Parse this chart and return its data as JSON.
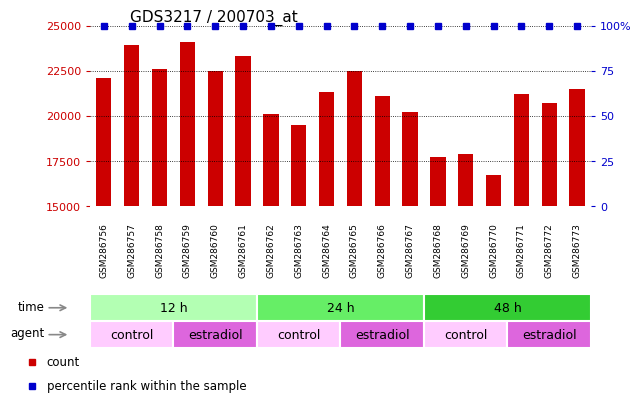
{
  "title": "GDS3217 / 200703_at",
  "samples": [
    "GSM286756",
    "GSM286757",
    "GSM286758",
    "GSM286759",
    "GSM286760",
    "GSM286761",
    "GSM286762",
    "GSM286763",
    "GSM286764",
    "GSM286765",
    "GSM286766",
    "GSM286767",
    "GSM286768",
    "GSM286769",
    "GSM286770",
    "GSM286771",
    "GSM286772",
    "GSM286773"
  ],
  "bar_values": [
    22100,
    23900,
    22600,
    24100,
    22500,
    23300,
    20100,
    19500,
    21300,
    22500,
    21100,
    20200,
    17700,
    17900,
    16700,
    21200,
    20700,
    21500
  ],
  "bar_color": "#cc0000",
  "percentile_color": "#0000cc",
  "ylim_left": [
    15000,
    25000
  ],
  "ylim_right": [
    0,
    100
  ],
  "yticks_left": [
    15000,
    17500,
    20000,
    22500,
    25000
  ],
  "yticks_right": [
    0,
    25,
    50,
    75,
    100
  ],
  "time_groups": [
    {
      "label": "12 h",
      "start": 0,
      "end": 6,
      "color": "#b3ffb3"
    },
    {
      "label": "24 h",
      "start": 6,
      "end": 12,
      "color": "#66ee66"
    },
    {
      "label": "48 h",
      "start": 12,
      "end": 18,
      "color": "#33cc33"
    }
  ],
  "agent_groups": [
    {
      "label": "control",
      "start": 0,
      "end": 3,
      "color": "#ffccff"
    },
    {
      "label": "estradiol",
      "start": 3,
      "end": 6,
      "color": "#dd66dd"
    },
    {
      "label": "control",
      "start": 6,
      "end": 9,
      "color": "#ffccff"
    },
    {
      "label": "estradiol",
      "start": 9,
      "end": 12,
      "color": "#dd66dd"
    },
    {
      "label": "control",
      "start": 12,
      "end": 15,
      "color": "#ffccff"
    },
    {
      "label": "estradiol",
      "start": 15,
      "end": 18,
      "color": "#dd66dd"
    }
  ],
  "left_axis_color": "#cc0000",
  "right_axis_color": "#0000cc",
  "title_color": "#000000",
  "bar_row_bg": "#cccccc",
  "xticklabel_fontsize": 7,
  "title_fontsize": 11
}
